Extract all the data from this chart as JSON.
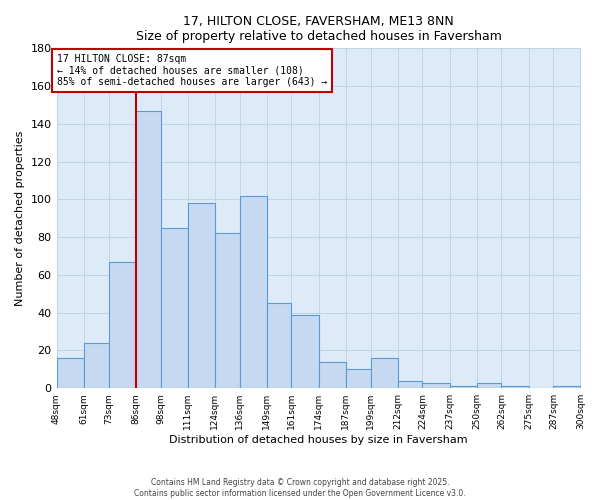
{
  "title": "17, HILTON CLOSE, FAVERSHAM, ME13 8NN",
  "subtitle": "Size of property relative to detached houses in Faversham",
  "xlabel": "Distribution of detached houses by size in Faversham",
  "ylabel": "Number of detached properties",
  "bar_edges": [
    48,
    61,
    73,
    86,
    98,
    111,
    124,
    136,
    149,
    161,
    174,
    187,
    199,
    212,
    224,
    237,
    250,
    262,
    275,
    287,
    300
  ],
  "bar_heights": [
    16,
    24,
    67,
    147,
    85,
    98,
    82,
    102,
    45,
    39,
    14,
    10,
    16,
    4,
    3,
    1,
    3,
    1,
    0,
    1
  ],
  "bar_color": "#c6d9f0",
  "bar_edge_color": "#5b9bd5",
  "property_line_x": 86,
  "property_line_color": "#c00000",
  "annotation_title": "17 HILTON CLOSE: 87sqm",
  "annotation_line1": "← 14% of detached houses are smaller (108)",
  "annotation_line2": "85% of semi-detached houses are larger (643) →",
  "annotation_box_color": "#ffffff",
  "annotation_box_edge_color": "#c00000",
  "ylim": [
    0,
    180
  ],
  "yticks": [
    0,
    20,
    40,
    60,
    80,
    100,
    120,
    140,
    160,
    180
  ],
  "footer_line1": "Contains HM Land Registry data © Crown copyright and database right 2025.",
  "footer_line2": "Contains public sector information licensed under the Open Government Licence v3.0.",
  "grid_color": "#c0d4e8",
  "background_color": "#ddeaf7",
  "fig_bg": "#ffffff"
}
